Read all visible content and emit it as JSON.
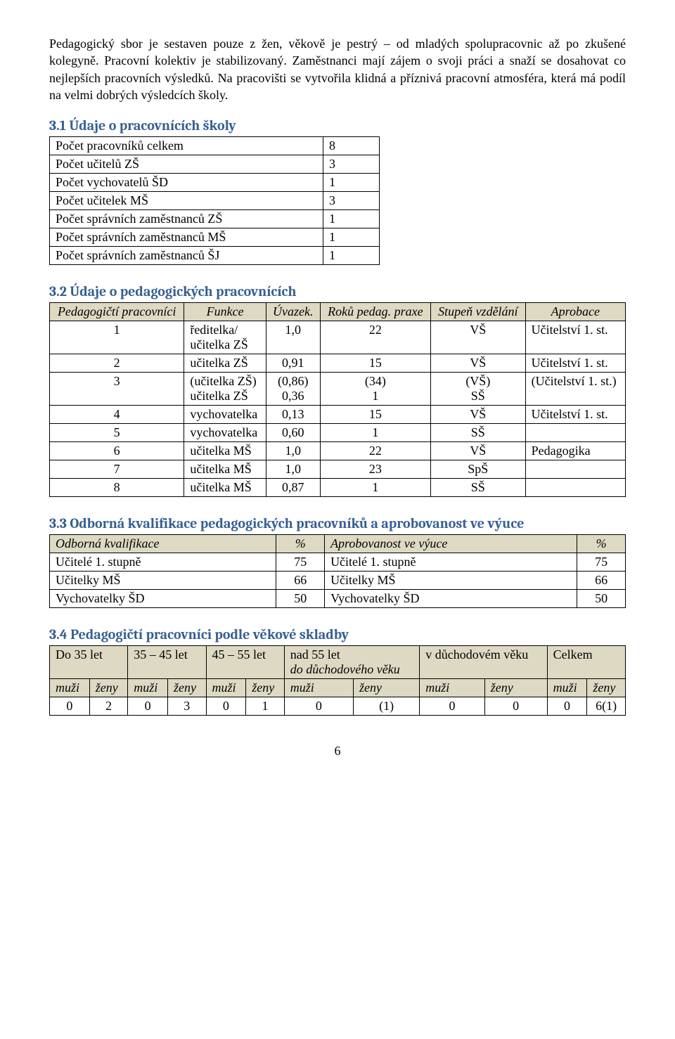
{
  "intro_paragraph": "Pedagogický sbor je sestaven pouze z žen, věkově je pestrý – od mladých spolupracovnic až po zkušené kolegyně. Pracovní kolektiv je stabilizovaný. Zaměstnanci mají zájem o svoji práci a snaží se dosahovat co nejlepších pracovních výsledků. Na pracovišti se vytvořila klidná a příznivá pracovní atmosféra, která má podíl na velmi dobrých výsledcích školy.",
  "s31": {
    "heading": "3.1 Údaje o pracovnících školy",
    "rows": [
      {
        "label": "Počet pracovníků celkem",
        "val": "8"
      },
      {
        "label": "Počet učitelů ZŠ",
        "val": "3"
      },
      {
        "label": "Počet vychovatelů ŠD",
        "val": "1"
      },
      {
        "label": "Počet učitelek MŠ",
        "val": "3"
      },
      {
        "label": "Počet správních zaměstnanců ZŠ",
        "val": "1"
      },
      {
        "label": "Počet správních zaměstnanců MŠ",
        "val": "1"
      },
      {
        "label": "Počet správních zaměstnanců ŠJ",
        "val": "1"
      }
    ]
  },
  "s32": {
    "heading": "3.2 Údaje o pedagogických pracovnících",
    "headers": [
      "Pedagogičtí pracovníci",
      "Funkce",
      "Úvazek.",
      "Roků pedag. praxe",
      "Stupeň vzdělání",
      "Aprobace"
    ],
    "rows": [
      [
        "1",
        "ředitelka/\nučitelka ZŠ",
        "1,0",
        "22",
        "VŠ",
        "Učitelství 1. st."
      ],
      [
        "2",
        "učitelka ZŠ",
        "0,91",
        "15",
        "VŠ",
        "Učitelství 1. st."
      ],
      [
        "3",
        "(učitelka ZŠ)\nučitelka ZŠ",
        "(0,86)\n0,36",
        "(34)\n1",
        "(VŠ)\nSŠ",
        "(Učitelství 1. st.)"
      ],
      [
        "4",
        "vychovatelka",
        "0,13",
        "15",
        "VŠ",
        "Učitelství 1. st."
      ],
      [
        "5",
        "vychovatelka",
        "0,60",
        "1",
        "SŠ",
        ""
      ],
      [
        "6",
        "učitelka MŠ",
        "1,0",
        "22",
        "VŠ",
        "Pedagogika"
      ],
      [
        "7",
        "učitelka MŠ",
        "1,0",
        "23",
        "SpŠ",
        ""
      ],
      [
        "8",
        "učitelka MŠ",
        "0,87",
        "1",
        "SŠ",
        ""
      ]
    ]
  },
  "s33": {
    "heading": "3.3 Odborná kvalifikace pedagogických pracovníků a aprobovanost ve výuce",
    "headers": [
      "Odborná kvalifikace",
      "%",
      "Aprobovanost ve výuce",
      "%"
    ],
    "rows": [
      [
        "Učitelé 1. stupně",
        "75",
        "Učitelé 1. stupně",
        "75"
      ],
      [
        "Učitelky MŠ",
        "66",
        "Učitelky MŠ",
        "66"
      ],
      [
        "Vychovatelky ŠD",
        "50",
        "Vychovatelky ŠD",
        "50"
      ]
    ]
  },
  "s34": {
    "heading": "3.4 Pedagogičtí pracovníci podle věkové skladby",
    "group_headers": [
      "Do 35 let",
      "35 – 45 let",
      "45 – 55 let",
      "nad 55 let\ndo důchodového věku",
      "v důchodovém věku",
      "Celkem"
    ],
    "sub_headers": [
      "muži",
      "ženy",
      "muži",
      "ženy",
      "muži",
      "ženy",
      "muži",
      "ženy",
      "muži",
      "ženy",
      "muži",
      "ženy"
    ],
    "values": [
      "0",
      "2",
      "0",
      "3",
      "0",
      "1",
      "0",
      "(1)",
      "0",
      "0",
      "0",
      "6(1)"
    ]
  },
  "page_number": "6",
  "colors": {
    "heading": "#365f91",
    "shaded_bg": "#ddd9c3",
    "text": "#000000",
    "border": "#000000",
    "background": "#ffffff"
  },
  "typography": {
    "body_font": "Times New Roman",
    "heading_font": "Cambria",
    "body_size_pt": 14,
    "heading_size_pt": 15
  }
}
